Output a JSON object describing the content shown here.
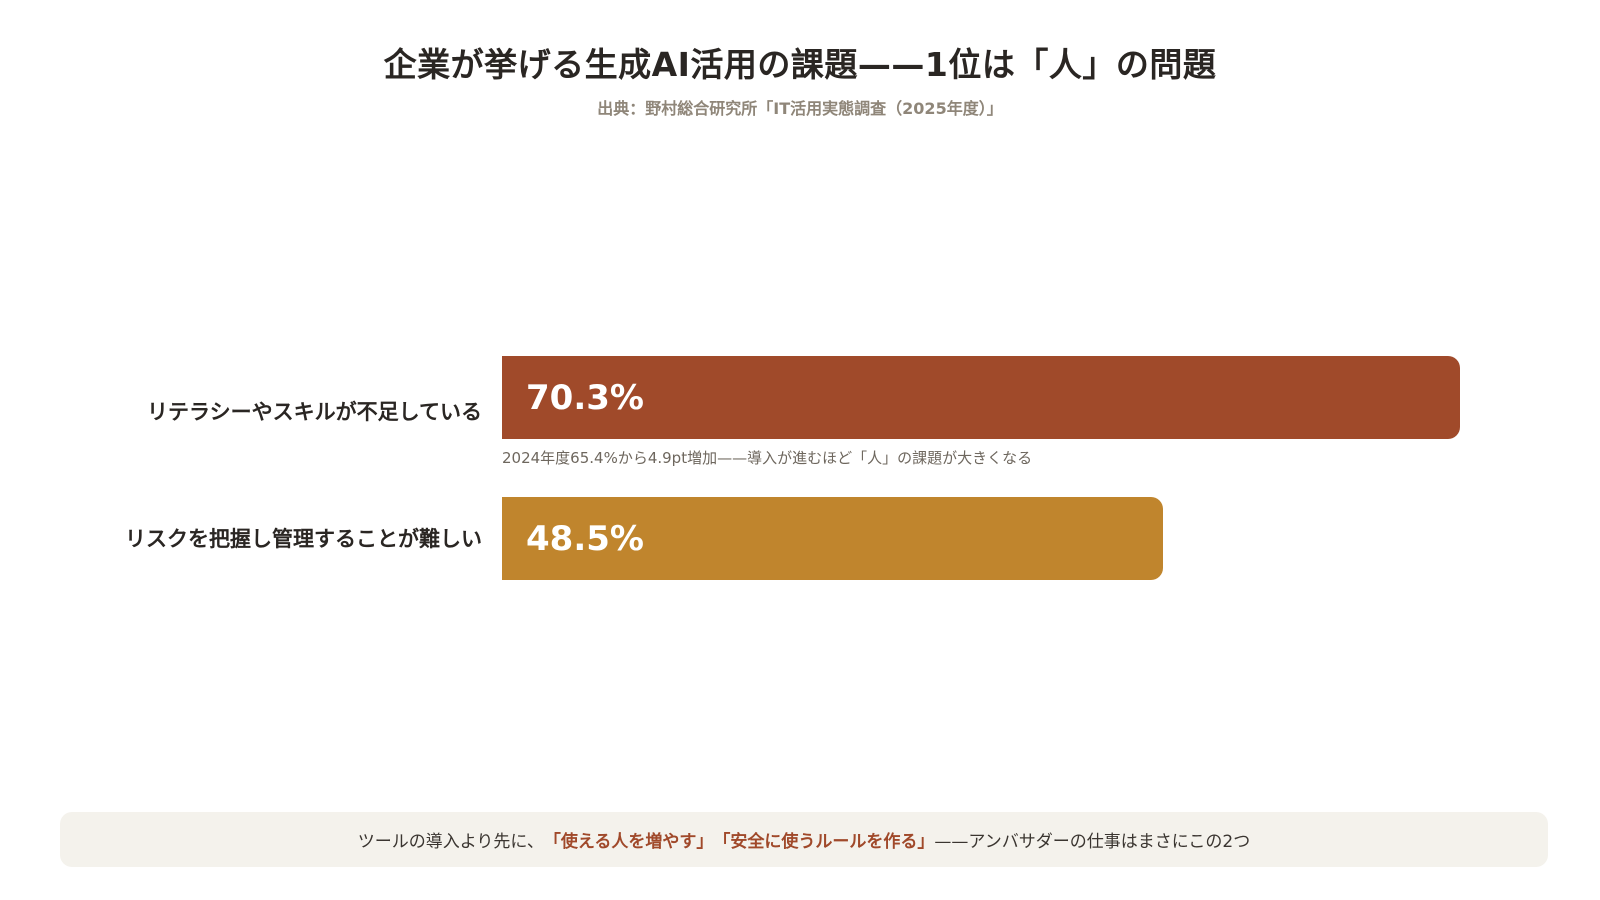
{
  "header": {
    "title": "企業が挙げる生成AI活用の課題——1位は「人」の問題",
    "subtitle": "出典：野村総合研究所「IT活用実態調査（2025年度）」"
  },
  "chart_data": {
    "type": "bar",
    "orientation": "horizontal",
    "title": "企業が挙げる生成AI活用の課題——1位は「人」の問題",
    "subtitle": "出典：野村総合研究所「IT活用実態調査（2025年度）」",
    "categories": [
      "リテラシーやスキルが不足している",
      "リスクを把握し管理することが難しい"
    ],
    "values": [
      70.3,
      48.5
    ],
    "value_labels": [
      "70.3%",
      "48.5%"
    ],
    "unit": "%",
    "xlim": [
      0,
      70.3
    ],
    "grid": false,
    "colors": [
      "#a04a2a",
      "#c0852d"
    ],
    "annotations": [
      {
        "category_index": 0,
        "text": "2024年度65.4%から4.9pt増加——導入が進むほど「人」の課題が大きくなる"
      }
    ]
  },
  "footer": {
    "before": "ツールの導入より先に、",
    "highlight1": "「使える人を増やす」",
    "highlight2": "「安全に使うルールを作る」",
    "after": "——アンバサダーの仕事はまさにこの2つ",
    "highlight_color": "#a0492a",
    "background_color": "#f4f2ec"
  }
}
